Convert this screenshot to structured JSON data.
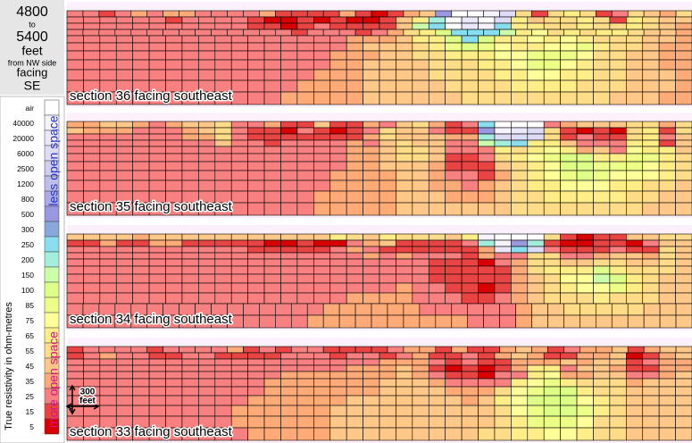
{
  "header": {
    "lines": [
      "4800",
      "to",
      "5400",
      "feet",
      "from NW side",
      "facing",
      "SE"
    ]
  },
  "legend": {
    "title": "True resistivity in ohm-metres",
    "less": "less open space",
    "more": "more open space",
    "entries": [
      {
        "label": "air",
        "color": "#ffffff"
      },
      {
        "label": "40000",
        "color": "#f6f2ff"
      },
      {
        "label": "20000",
        "color": "#ebe7fc"
      },
      {
        "label": "6000",
        "color": "#dedbf8"
      },
      {
        "label": "2500",
        "color": "#cfcdf3"
      },
      {
        "label": "1200",
        "color": "#bfbdee"
      },
      {
        "label": "800",
        "color": "#adaae8"
      },
      {
        "label": "500",
        "color": "#9a98e0"
      },
      {
        "label": "300",
        "color": "#88a8dd"
      },
      {
        "label": "250",
        "color": "#88ddee"
      },
      {
        "label": "200",
        "color": "#a4eedd"
      },
      {
        "label": "150",
        "color": "#ccffaa"
      },
      {
        "label": "100",
        "color": "#ddff88"
      },
      {
        "label": "85",
        "color": "#eeff88"
      },
      {
        "label": "75",
        "color": "#ffff99"
      },
      {
        "label": "65",
        "color": "#ffee88"
      },
      {
        "label": "55",
        "color": "#ffdd88"
      },
      {
        "label": "45",
        "color": "#ffc888"
      },
      {
        "label": "35",
        "color": "#ffaa77"
      },
      {
        "label": "25",
        "color": "#f88080"
      },
      {
        "label": "15",
        "color": "#e84444"
      },
      {
        "label": "5",
        "color": "#d80000"
      }
    ]
  },
  "scale": {
    "amount": "300",
    "unit": "feet"
  },
  "sections": [
    {
      "label": "section 36  facing southeast",
      "grid": [
        "ttutstssttttsuuuusuvusrhaabdquqpqutqrsq",
        "ttttttuttttuvvuvuvvurpkacadprqqpqupqrr",
        "tttttttttttuuvutuuuurljacbjppqqpqqpqrs",
        "ttttttttttttttutttutsqpmjjjlpoqpqppqrrs",
        "tttttttttttttttttsssrppmjmppopopqqqrrs",
        "tttttttttttttttttsrrrqpnmnoppoonpqqrss",
        "ttttttttttttttttsssrrqqpppoonnnoqqrrss",
        "ttttttttttttttttssrrrrqqqpponnopqqrrss",
        "tttttttttttttttsssrrrrqqqqppooppqqrrrs",
        "ttttttttttttttssssrrrrrqqqqppppqqqrrrs",
        "tttttttttttttsssssrrrrrrqqqqqqqqqrrrss"
      ]
    },
    {
      "label": "section 35  facing southeast",
      "grid": [
        "ssrrstsrrqttsuuruustrqsutjaaatsrrrqqsq",
        "rssstttsrqtuuvtuvutqrrtuuhbcdquvuvqpuq",
        "tttttttssqtuuuuuuusqrrrsskdddqutuuqptr",
        "tttttttttrttuttttstrqrrttlkjpprtttppur",
        "tttttttttttttttttssrqqrtttpqpopsrtoppr",
        "tttttttttttttttttssrqqruutqponmmppnnpq",
        "tttttttttttttttttssrrrsuuurqpommnnnopq",
        "ttttttttttttttttssssrrsttusqponmnooopq",
        "ttttttttttttttttssssrrsstsrqppoooppqqr",
        "tttttttttttttttsssssrrrsssrqqpppppqqrr",
        "tttttttttttttttsssssrrrrrrrqqqqqqqqrrr"
      ]
    },
    {
      "label": "section 34  facing southeast",
      "grid": [
        "rrrrsrrrrrrrrrrrpqrpqqqrpbaaaquvuurrqq",
        "uusuussuuuuuvvuvvtsruuuutkbhkuvvuuvtrr",
        "tttttttttttuuuuutstuuuuuuscjdtuuutuuqr",
        "ttttttttttttttttttststttusttqqttsrrsqr",
        "ttttttttttttttttttttttuuuvtsqqrrqqrrqr",
        "ttttttttttttttttttttttuuuuusqpppmpqqqr",
        "ttttttttttttttttttttttuuuuusrqoolmpqrr",
        "ttttttttttttttttttttsttuuvusrqpoonpqrr",
        "tttttttttttttttttsssstttuutsrqqqpqqqrr",
        "ttttttttttttttttssssssttttttsrrqqqqqrrr",
        "tttttttttttttttsssssssssstttsrrrrrrrrrr"
      ]
    },
    {
      "label": "section 33  facing southeast",
      "grid": [
        "uttttuttttsututtuuuutssusuusrsutssrusrr",
        "utsttuuttuuuutttuttutsuutusrsuussrvusr",
        "tttttttttttttttttttssstutuusssrsrrutss",
        "tttttttttttttttttsssrsuvuvuspptrrsuuss",
        "tttttttttttttsssssssrstuuvttpossrrttsr",
        "ttttttttttttsssssssrrrsttttponpqqqsrrr",
        "ttttttttttttsssssssrrrrsssqonmmpqqrrrr",
        "tttttttttttssssssrrrrrrrsrpommmopqrrrr",
        "ttttttttttssssssrrrrrrrrrrqonmmnpqrrrr",
        "ttttttttttssssssrrrrrrrrrrqpnnnoqqrrrr",
        "tttttttttttsssssrrrrrrrrrqqppoopqqrrrr"
      ]
    }
  ]
}
